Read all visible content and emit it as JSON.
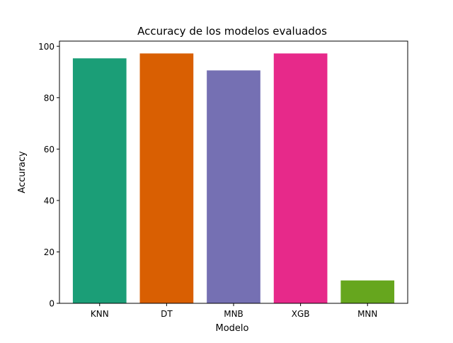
{
  "chart_data": {
    "type": "bar",
    "title": "Accuracy de los modelos evaluados",
    "xlabel": "Modelo",
    "ylabel": "Accuracy",
    "categories": [
      "KNN",
      "DT",
      "MNB",
      "XGB",
      "MNN"
    ],
    "values": [
      95.3,
      97.2,
      90.6,
      97.2,
      8.9
    ],
    "colors": [
      "#1b9e77",
      "#d95f02",
      "#7570b3",
      "#e7298a",
      "#66a61e"
    ],
    "ylim": [
      0,
      102
    ],
    "yticks": [
      0,
      20,
      40,
      60,
      80,
      100
    ],
    "grid": false,
    "legend": "none"
  }
}
